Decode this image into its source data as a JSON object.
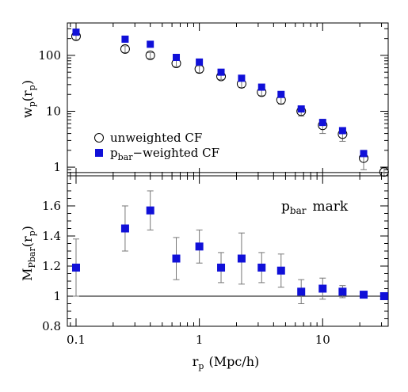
{
  "chart_data": [
    {
      "type": "scatter",
      "panel": "top",
      "xscale": "log",
      "yscale": "log",
      "xlim": [
        0.085,
        34
      ],
      "ylim": [
        0.7,
        380
      ],
      "ylabel_main": "w",
      "ylabel_sub": "p",
      "ylabel_paren_open": "(r",
      "ylabel_paren_sub": "p",
      "ylabel_paren_close": ")",
      "y_ticks": [
        {
          "value": 1,
          "label": "1"
        },
        {
          "value": 10,
          "label": "10"
        },
        {
          "value": 100,
          "label": "100"
        }
      ],
      "reference_line": 0.8,
      "legend_position": "lower-left",
      "legend": {
        "unweighted": "unweighted CF",
        "weighted_prefix": "p",
        "weighted_sub": "bar",
        "weighted_suffix": "−weighted CF"
      },
      "x": [
        0.1,
        0.25,
        0.4,
        0.65,
        1.0,
        1.5,
        2.2,
        3.2,
        4.6,
        6.7,
        10.0,
        14.5,
        21.5,
        31.5
      ],
      "series": [
        {
          "name": "unweighted CF",
          "marker": "open-circle",
          "values": [
            220,
            130,
            100,
            72,
            57,
            42,
            31,
            22,
            16,
            10,
            5.6,
            3.9,
            1.45,
            0.82
          ],
          "errors": [
            30,
            18,
            12,
            9,
            8,
            5,
            4.5,
            3,
            2.5,
            1.8,
            1.6,
            1.0,
            0.55,
            0.15
          ]
        },
        {
          "name": "p_bar-weighted CF",
          "marker": "filled-square",
          "color": "#1010d8",
          "values": [
            260,
            195,
            158,
            92,
            76,
            50,
            39,
            27,
            20,
            11,
            6.3,
            4.5,
            1.75,
            null
          ]
        }
      ]
    },
    {
      "type": "scatter",
      "panel": "bottom",
      "xscale": "log",
      "yscale": "linear",
      "xlim": [
        0.085,
        34
      ],
      "ylim": [
        0.8,
        1.8
      ],
      "xlabel_main": "r",
      "xlabel_sub": "p",
      "xlabel_units": "(Mpc/h)",
      "ylabel_main": "M",
      "ylabel_sub": "Pbar",
      "ylabel_paren_open": "(r",
      "ylabel_paren_sub": "p",
      "ylabel_paren_close": ")",
      "annotation_main": "p",
      "annotation_sub": "bar",
      "annotation_suffix": "mark",
      "reference_line": 1.0,
      "x_ticks": [
        {
          "value": 0.1,
          "label": "0.1"
        },
        {
          "value": 1,
          "label": "1"
        },
        {
          "value": 10,
          "label": "10"
        }
      ],
      "y_ticks": [
        {
          "value": 0.8,
          "label": "0.8"
        },
        {
          "value": 1.0,
          "label": "1"
        },
        {
          "value": 1.2,
          "label": "1.2"
        },
        {
          "value": 1.4,
          "label": "1.4"
        },
        {
          "value": 1.6,
          "label": "1.6"
        }
      ],
      "x": [
        0.1,
        0.25,
        0.4,
        0.65,
        1.0,
        1.5,
        2.2,
        3.2,
        4.6,
        6.7,
        10.0,
        14.5,
        21.5,
        31.5
      ],
      "series": [
        {
          "name": "p_bar mark",
          "marker": "filled-square",
          "color": "#1010d8",
          "values": [
            1.19,
            1.45,
            1.57,
            1.25,
            1.33,
            1.19,
            1.25,
            1.19,
            1.17,
            1.03,
            1.05,
            1.03,
            1.01,
            1.0
          ],
          "errors": [
            0.19,
            0.15,
            0.13,
            0.14,
            0.11,
            0.1,
            0.17,
            0.1,
            0.11,
            0.08,
            0.07,
            0.04,
            0.02,
            0.01
          ]
        }
      ]
    }
  ]
}
